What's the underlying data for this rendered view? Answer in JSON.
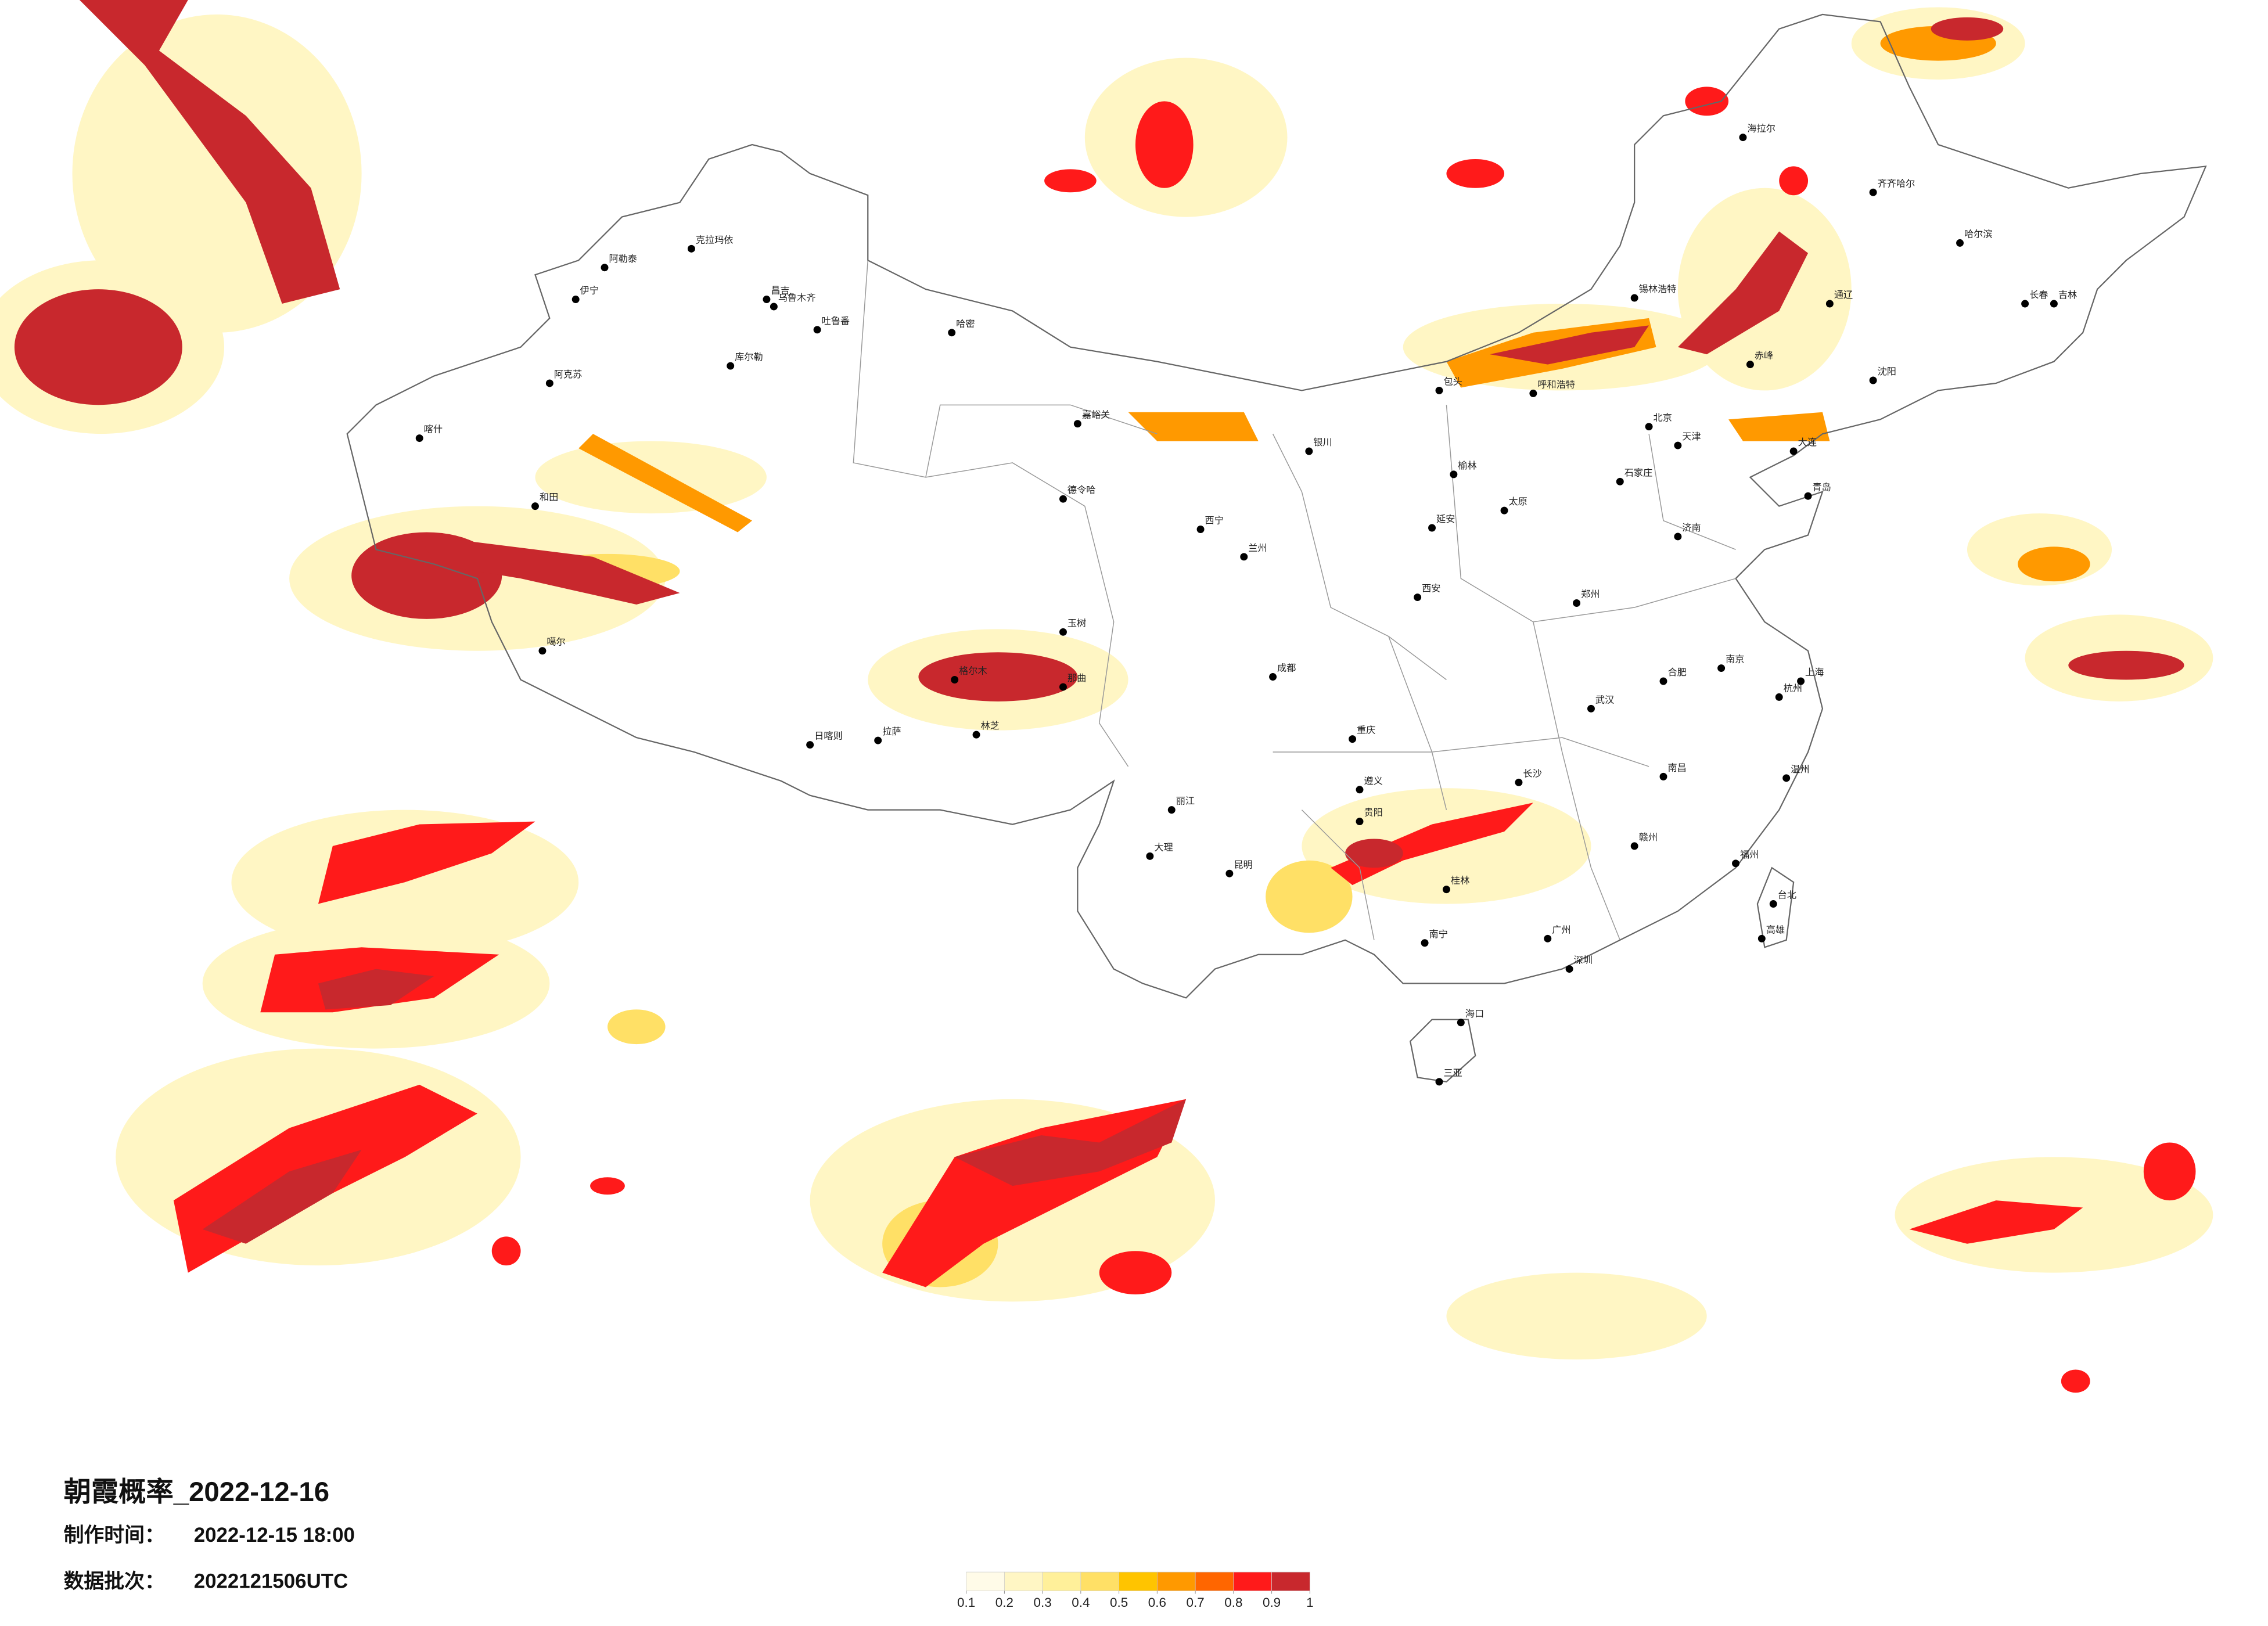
{
  "title": "朝霞概率_2022-12-16",
  "production_time": {
    "label": "制作时间：",
    "value": "2022-12-15 18:00"
  },
  "batch": {
    "label": "数据批次：",
    "value": "2022121506UTC"
  },
  "legend": {
    "ticks": [
      0.1,
      0.2,
      0.3,
      0.4,
      0.5,
      0.6,
      0.7,
      0.8,
      0.9,
      1
    ],
    "colors": [
      "#fffbe8",
      "#fff6c4",
      "#fff09a",
      "#ffe066",
      "#ffc400",
      "#ff9900",
      "#ff6600",
      "#ff1a1a",
      "#c8282d"
    ]
  },
  "cities": [
    "克拉玛依",
    "阿勒泰",
    "伊宁",
    "昌吉",
    "乌鲁木齐",
    "吐鲁番",
    "哈密",
    "库尔勒",
    "阿克苏",
    "喀什",
    "和田",
    "噶尔",
    "日喀则",
    "拉萨",
    "林芝",
    "那曲",
    "玉树",
    "格尔木",
    "德令哈",
    "西宁",
    "兰州",
    "嘉峪关",
    "银川",
    "呼和浩特",
    "包头",
    "锡林浩特",
    "海拉尔",
    "齐齐哈尔",
    "哈尔滨",
    "长春",
    "吉林",
    "沈阳",
    "大连",
    "北京",
    "天津",
    "石家庄",
    "太原",
    "济南",
    "青岛",
    "郑州",
    "西安",
    "成都",
    "重庆",
    "贵阳",
    "昆明",
    "南宁",
    "广州",
    "深圳",
    "海口",
    "三亚",
    "长沙",
    "武汉",
    "南昌",
    "福州",
    "杭州",
    "上海",
    "南京",
    "合肥",
    "台北",
    "高雄",
    "大理",
    "丽江",
    "遵义",
    "桂林",
    "赣州",
    "温州",
    "延安",
    "榆林",
    "通辽",
    "赤峰"
  ]
}
